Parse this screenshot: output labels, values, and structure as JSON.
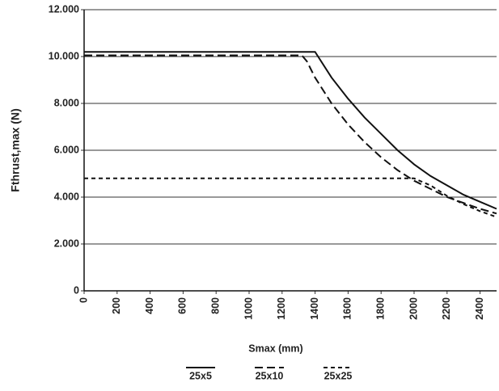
{
  "chart_data": {
    "type": "line",
    "xlabel": "Smax (mm)",
    "ylabel": "Fthrust,max (N)",
    "xlim": [
      0,
      2500
    ],
    "ylim": [
      0,
      12000
    ],
    "xticks": [
      0,
      200,
      400,
      600,
      800,
      1000,
      1200,
      1400,
      1600,
      1800,
      2000,
      2200,
      2400
    ],
    "yticks": [
      0,
      {
        "value": 2000,
        "label": "2.000"
      },
      {
        "value": 4000,
        "label": "4.000"
      },
      {
        "value": 6000,
        "label": "6.000"
      },
      {
        "value": 8000,
        "label": "8.000"
      },
      {
        "value": 10000,
        "label": "10.000"
      },
      {
        "value": 12000,
        "label": "12.000"
      }
    ],
    "grid": true,
    "series": [
      {
        "name": "25x5",
        "color": "#111111",
        "dash": "solid",
        "x": [
          0,
          1400,
          1500,
          1600,
          1700,
          1800,
          1900,
          2000,
          2100,
          2200,
          2300,
          2400,
          2500
        ],
        "values": [
          10200,
          10200,
          9100,
          8200,
          7400,
          6700,
          6000,
          5400,
          4900,
          4500,
          4100,
          3800,
          3500
        ]
      },
      {
        "name": "25x10",
        "color": "#111111",
        "dash": "long",
        "x": [
          0,
          1320,
          1350,
          1400,
          1500,
          1600,
          1700,
          1800,
          1900,
          2000,
          2100,
          2200,
          2300,
          2400,
          2500
        ],
        "values": [
          10050,
          10050,
          9800,
          9100,
          8000,
          7100,
          6350,
          5700,
          5150,
          4700,
          4350,
          4000,
          3750,
          3500,
          3300
        ]
      },
      {
        "name": "25x25",
        "color": "#111111",
        "dash": "short",
        "x": [
          0,
          2000,
          2100,
          2200,
          2300,
          2400,
          2500
        ],
        "values": [
          4800,
          4800,
          4500,
          4050,
          3700,
          3400,
          3150
        ]
      }
    ]
  }
}
